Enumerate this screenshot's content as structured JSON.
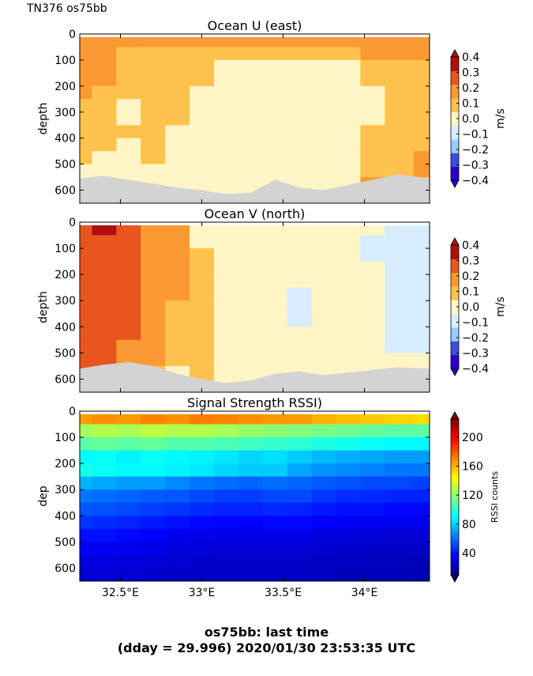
{
  "figure": {
    "corner_label": "TN376 os75bb",
    "footer_line1": "os75bb: last time",
    "footer_line2": "(dday = 29.996) 2020/01/30 23:53:35 UTC"
  },
  "chart_data": [
    {
      "type": "heatmap",
      "title": "Ocean U (east)",
      "ylabel": "depth",
      "xlabel": "",
      "xlim": [
        32.25,
        34.4
      ],
      "ylim": [
        650,
        0
      ],
      "yticks": [
        0,
        100,
        200,
        300,
        400,
        500,
        600
      ],
      "xticks": [
        32.5,
        33.0,
        33.5,
        34.0
      ],
      "xticklabels": [],
      "colorbar": {
        "label": "m/s",
        "ticks": [
          0.4,
          0.3,
          0.2,
          0.1,
          0.0,
          -0.1,
          -0.2,
          -0.3,
          -0.4
        ],
        "ticklabels": [
          "0.4",
          "0.3",
          "0.2",
          "0.1",
          "0.0",
          "−0.1",
          "−0.2",
          "−0.3",
          "−0.4"
        ],
        "range": [
          -0.4,
          0.4
        ],
        "colors": [
          "#2a00cc",
          "#3f4ddf",
          "#99ccff",
          "#d6eeff",
          "#fff5c5",
          "#ffc24d",
          "#fb9a33",
          "#e8561e",
          "#b30e0e"
        ]
      },
      "x": [
        32.25,
        32.4,
        32.55,
        32.7,
        32.85,
        33.0,
        33.15,
        33.3,
        33.45,
        33.6,
        33.75,
        33.9,
        34.05,
        34.2,
        34.4
      ],
      "depths": [
        25,
        75,
        125,
        175,
        225,
        275,
        325,
        375,
        425,
        475,
        525,
        575,
        625
      ],
      "bottom_depth": [
        555,
        545,
        560,
        575,
        590,
        600,
        615,
        610,
        560,
        590,
        600,
        580,
        560,
        540,
        555
      ],
      "values": [
        [
          0.18,
          0.18,
          0.16,
          0.15,
          0.14,
          0.13,
          0.12,
          0.1,
          0.08,
          0.05,
          0.04,
          0.02,
          0.02
        ],
        [
          0.17,
          0.16,
          0.15,
          0.14,
          0.13,
          0.12,
          0.1,
          0.08,
          0.06,
          0.04,
          0.03,
          0.02,
          0.02
        ],
        [
          0.14,
          0.1,
          0.08,
          0.06,
          0.05,
          0.04,
          0.03,
          0.05,
          0.04,
          0.03,
          0.02,
          0.02,
          0.02
        ],
        [
          0.16,
          0.12,
          0.11,
          0.1,
          0.12,
          0.11,
          0.12,
          0.11,
          0.09,
          0.06,
          0.04,
          0.02,
          0.02
        ],
        [
          0.17,
          0.13,
          0.11,
          0.09,
          0.08,
          0.06,
          0.05,
          0.04,
          0.03,
          0.02,
          0.02,
          0.02,
          0.02
        ],
        [
          0.16,
          0.12,
          0.08,
          0.05,
          0.03,
          0.03,
          0.02,
          0.02,
          0.03,
          0.02,
          0.02,
          0.02,
          0.02
        ],
        [
          0.15,
          0.06,
          0.04,
          0.03,
          0.03,
          0.02,
          0.02,
          0.02,
          0.02,
          0.02,
          0.02,
          0.02,
          0.02
        ],
        [
          0.15,
          0.06,
          0.04,
          0.03,
          0.02,
          0.02,
          0.02,
          0.03,
          0.02,
          0.02,
          0.02,
          0.02,
          0.02
        ],
        [
          0.16,
          0.05,
          0.04,
          0.03,
          0.02,
          0.02,
          0.02,
          0.02,
          0.02,
          0.03,
          0.02,
          0.02,
          0.02
        ],
        [
          0.18,
          0.05,
          0.04,
          0.03,
          0.02,
          0.02,
          -0.01,
          0.02,
          0.02,
          0.02,
          0.02,
          0.02,
          0.02
        ],
        [
          0.17,
          0.05,
          0.04,
          0.03,
          0.02,
          0.02,
          0.02,
          0.02,
          0.02,
          0.02,
          0.02,
          0.02,
          0.02
        ],
        [
          0.18,
          0.06,
          0.04,
          0.03,
          0.02,
          0.02,
          0.02,
          0.02,
          0.02,
          0.02,
          0.02,
          0.02,
          0.02
        ],
        [
          0.16,
          0.14,
          0.12,
          0.06,
          0.04,
          0.03,
          0.03,
          0.05,
          0.06,
          0.08,
          0.12,
          0.14,
          0.14
        ],
        [
          0.17,
          0.15,
          0.13,
          0.13,
          0.12,
          0.12,
          0.12,
          0.13,
          0.12,
          0.12,
          0.12,
          0.13,
          0.13
        ],
        [
          0.22,
          0.14,
          0.13,
          0.12,
          0.12,
          0.12,
          0.12,
          0.13,
          0.13,
          0.14,
          0.14,
          0.13,
          0.13
        ]
      ]
    },
    {
      "type": "heatmap",
      "title": "Ocean V (north)",
      "ylabel": "depth",
      "xlabel": "",
      "xlim": [
        32.25,
        34.4
      ],
      "ylim": [
        650,
        0
      ],
      "yticks": [
        0,
        100,
        200,
        300,
        400,
        500,
        600
      ],
      "xticks": [
        32.5,
        33.0,
        33.5,
        34.0
      ],
      "xticklabels": [],
      "colorbar": {
        "label": "m/s",
        "ticks": [
          0.4,
          0.3,
          0.2,
          0.1,
          0.0,
          -0.1,
          -0.2,
          -0.3,
          -0.4
        ],
        "ticklabels": [
          "0.4",
          "0.3",
          "0.2",
          "0.1",
          "0.0",
          "−0.1",
          "−0.2",
          "−0.3",
          "−0.4"
        ],
        "range": [
          -0.4,
          0.4
        ],
        "colors": [
          "#2a00cc",
          "#3f4ddf",
          "#99ccff",
          "#d6eeff",
          "#fff5c5",
          "#ffc24d",
          "#fb9a33",
          "#e8561e",
          "#b30e0e"
        ]
      },
      "x": [
        32.25,
        32.4,
        32.55,
        32.7,
        32.85,
        33.0,
        33.15,
        33.3,
        33.45,
        33.6,
        33.75,
        33.9,
        34.05,
        34.2,
        34.4
      ],
      "depths": [
        25,
        75,
        125,
        175,
        225,
        275,
        325,
        375,
        425,
        475,
        525,
        575,
        625
      ],
      "bottom_depth": [
        560,
        545,
        535,
        550,
        580,
        600,
        615,
        605,
        580,
        570,
        585,
        575,
        565,
        555,
        560
      ],
      "values": [
        [
          0.3,
          0.28,
          0.26,
          0.25,
          0.25,
          0.24,
          0.24,
          0.25,
          0.24,
          0.24,
          0.25,
          0.25,
          0.24
        ],
        [
          0.32,
          0.3,
          0.28,
          0.27,
          0.26,
          0.26,
          0.25,
          0.25,
          0.26,
          0.26,
          0.25,
          0.24,
          0.24
        ],
        [
          0.26,
          0.24,
          0.24,
          0.24,
          0.23,
          0.24,
          0.23,
          0.24,
          0.23,
          0.22,
          0.22,
          0.22,
          0.22
        ],
        [
          0.22,
          0.19,
          0.18,
          0.18,
          0.18,
          0.17,
          0.17,
          0.17,
          0.16,
          0.15,
          0.14,
          0.13,
          0.13
        ],
        [
          0.14,
          0.14,
          0.15,
          0.15,
          0.15,
          0.14,
          0.12,
          0.11,
          0.1,
          0.07,
          0.05,
          0.04,
          0.04
        ],
        [
          0.03,
          0.04,
          0.05,
          0.06,
          0.06,
          0.05,
          0.05,
          0.05,
          0.05,
          0.05,
          0.05,
          0.05,
          0.05
        ],
        [
          0.03,
          0.03,
          0.03,
          0.03,
          0.03,
          0.02,
          0.02,
          0.02,
          0.02,
          0.02,
          0.02,
          0.02,
          0.02
        ],
        [
          0.02,
          -0.02,
          -0.02,
          -0.02,
          -0.02,
          -0.03,
          -0.02,
          -0.02,
          -0.02,
          -0.02,
          -0.02,
          0.02,
          0.02
        ],
        [
          -0.02,
          -0.03,
          -0.04,
          -0.04,
          -0.04,
          -0.04,
          -0.03,
          -0.03,
          -0.03,
          -0.02,
          -0.02,
          -0.02,
          -0.02
        ],
        [
          -0.02,
          -0.03,
          -0.03,
          -0.04,
          -0.04,
          -0.05,
          -0.05,
          -0.05,
          -0.04,
          -0.03,
          -0.02,
          -0.02,
          -0.02
        ],
        [
          0.02,
          0.02,
          -0.02,
          -0.03,
          -0.03,
          -0.04,
          -0.04,
          0.03,
          0.03,
          0.02,
          0.02,
          0.02,
          0.02
        ],
        [
          0.02,
          -0.02,
          -0.03,
          -0.03,
          -0.04,
          -0.04,
          0.03,
          0.03,
          0.03,
          0.02,
          0.02,
          0.02,
          0.02
        ],
        [
          -0.04,
          -0.05,
          -0.05,
          -0.04,
          -0.04,
          -0.04,
          -0.04,
          -0.04,
          -0.04,
          -0.04,
          -0.03,
          -0.03,
          -0.03
        ],
        [
          -0.06,
          -0.08,
          -0.11,
          -0.12,
          -0.13,
          -0.12,
          -0.08,
          -0.06,
          -0.05,
          -0.05,
          -0.04,
          -0.04,
          -0.04
        ],
        [
          -0.07,
          -0.09,
          -0.1,
          -0.12,
          -0.12,
          -0.11,
          -0.07,
          -0.06,
          -0.05,
          -0.05,
          -0.04,
          -0.04,
          -0.04
        ]
      ]
    },
    {
      "type": "heatmap",
      "title": "Signal Strength RSSI)",
      "ylabel": "dep",
      "xlabel": "",
      "xlim": [
        32.25,
        34.4
      ],
      "ylim": [
        650,
        0
      ],
      "yticks": [
        0,
        100,
        200,
        300,
        400,
        500,
        600
      ],
      "xticks": [
        32.5,
        33.0,
        33.5,
        34.0
      ],
      "xticklabels": [
        "32.5°E",
        "33°E",
        "33.5°E",
        "34°E"
      ],
      "colorbar": {
        "label": "RSSI counts",
        "ticks": [
          200,
          160,
          120,
          80,
          40
        ],
        "ticklabels": [
          "200",
          "160",
          "120",
          "80",
          "40"
        ],
        "range": [
          10,
          225
        ]
      },
      "x": [
        32.25,
        32.4,
        32.55,
        32.7,
        32.85,
        33.0,
        33.15,
        33.3,
        33.45,
        33.6,
        33.75,
        33.9,
        34.05,
        34.2,
        34.4
      ],
      "depths": [
        25,
        75,
        125,
        175,
        225,
        275,
        325,
        375,
        425,
        475,
        525,
        575,
        625
      ],
      "values": [
        [
          165,
          125,
          110,
          90,
          95,
          75,
          62,
          55,
          48,
          40,
          35,
          30,
          28
        ],
        [
          168,
          128,
          112,
          92,
          92,
          72,
          60,
          54,
          46,
          40,
          34,
          30,
          28
        ],
        [
          166,
          126,
          110,
          88,
          90,
          70,
          58,
          52,
          44,
          38,
          33,
          29,
          27
        ],
        [
          170,
          130,
          112,
          92,
          90,
          70,
          56,
          50,
          42,
          36,
          32,
          28,
          26
        ],
        [
          168,
          128,
          108,
          90,
          88,
          66,
          55,
          48,
          40,
          34,
          30,
          27,
          25
        ],
        [
          172,
          128,
          108,
          88,
          86,
          62,
          52,
          46,
          38,
          33,
          29,
          26,
          24
        ],
        [
          170,
          126,
          106,
          86,
          82,
          60,
          50,
          44,
          37,
          32,
          28,
          25,
          24
        ],
        [
          168,
          122,
          104,
          82,
          80,
          58,
          50,
          44,
          36,
          32,
          28,
          25,
          24
        ],
        [
          166,
          120,
          102,
          84,
          80,
          60,
          52,
          45,
          38,
          32,
          28,
          25,
          24
        ],
        [
          165,
          118,
          100,
          80,
          72,
          58,
          52,
          44,
          38,
          32,
          28,
          25,
          24
        ],
        [
          160,
          116,
          96,
          76,
          68,
          56,
          48,
          42,
          36,
          30,
          27,
          24,
          23
        ],
        [
          158,
          114,
          94,
          74,
          66,
          54,
          46,
          40,
          35,
          30,
          26,
          24,
          22
        ],
        [
          156,
          112,
          92,
          72,
          64,
          52,
          45,
          40,
          34,
          29,
          26,
          23,
          22
        ],
        [
          154,
          110,
          90,
          70,
          62,
          52,
          44,
          38,
          33,
          28,
          25,
          23,
          22
        ],
        [
          152,
          110,
          90,
          70,
          62,
          50,
          44,
          38,
          33,
          28,
          25,
          22,
          21
        ]
      ]
    }
  ]
}
